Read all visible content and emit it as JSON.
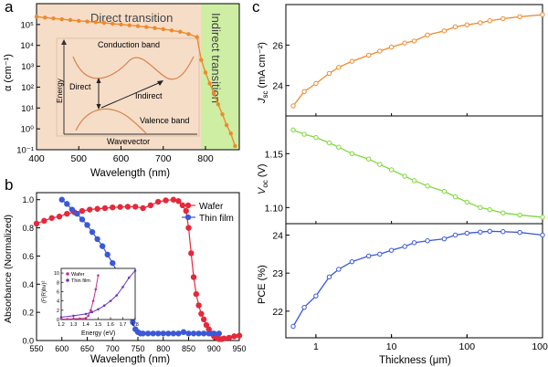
{
  "panel_labels": {
    "a": "a",
    "b": "b",
    "c": "c"
  },
  "colors": {
    "orange": "#ee8a2c",
    "green": "#7fd83a",
    "blue": "#3b58d8",
    "red": "#e6283a",
    "magenta": "#c2338e",
    "purple": "#6a35c2",
    "direct_bg": "#f6ddc8",
    "indirect_bg": "#cdeea3"
  },
  "chart_data": [
    {
      "id": "a",
      "type": "line",
      "xlabel": "Wavelength (nm)",
      "ylabel": "α (cm⁻¹)",
      "xlim": [
        400,
        880
      ],
      "ylim": [
        0.1,
        1000000
      ],
      "yscale": "log",
      "xticks": [
        "400",
        "500",
        "600",
        "700",
        "800"
      ],
      "xtick_values": [
        400,
        500,
        600,
        700,
        800
      ],
      "yticks": [
        "10⁻¹",
        "10⁰",
        "10¹",
        "10²",
        "10³",
        "10⁴",
        "10⁵"
      ],
      "ytick_values": [
        0.1,
        1,
        10,
        100,
        1000,
        10000,
        100000
      ],
      "region_labels": {
        "direct": "Direct transition",
        "indirect": "Indirect transition"
      },
      "region_boundary": 785,
      "inset": {
        "conduction": "Conduction band",
        "valence": "Valence band",
        "direct": "Direct",
        "indirect": "Indirect",
        "energy": "Energy",
        "wavevector": "Wavevector"
      },
      "series": [
        {
          "x": [
            400,
            420,
            440,
            460,
            480,
            500,
            520,
            540,
            560,
            580,
            600,
            620,
            640,
            660,
            680,
            700,
            720,
            740,
            760,
            780,
            790,
            800,
            810,
            820,
            830,
            840,
            850,
            860,
            870
          ],
          "y": [
            240000,
            215000,
            195000,
            180000,
            165000,
            150000,
            140000,
            130000,
            120000,
            110000,
            100000,
            92000,
            84000,
            76000,
            68000,
            60000,
            52000,
            45000,
            35000,
            25000,
            2000,
            500,
            150,
            50,
            15,
            5,
            1.5,
            0.6,
            0.15
          ]
        }
      ]
    },
    {
      "id": "b",
      "type": "line",
      "xlabel": "Wavelength (nm)",
      "ylabel": "Absorbance (Normalized)",
      "xlim": [
        550,
        950
      ],
      "ylim": [
        0,
        1.05
      ],
      "xticks": [
        "550",
        "600",
        "650",
        "700",
        "750",
        "800",
        "850",
        "900",
        "950"
      ],
      "xtick_values": [
        550,
        600,
        650,
        700,
        750,
        800,
        850,
        900,
        950
      ],
      "yticks": [
        "0.0",
        "0.2",
        "0.4",
        "0.6",
        "0.8",
        "1.0"
      ],
      "ytick_values": [
        0,
        0.2,
        0.4,
        0.6,
        0.8,
        1.0
      ],
      "legend": "top-right",
      "series": [
        {
          "name": "Wafer",
          "color": "red",
          "x": [
            550,
            565,
            580,
            595,
            610,
            625,
            640,
            655,
            670,
            685,
            700,
            715,
            730,
            745,
            760,
            775,
            790,
            805,
            820,
            830,
            838,
            845,
            850,
            855,
            860,
            865,
            870,
            875,
            880,
            885,
            890,
            895,
            900,
            905,
            910,
            915,
            920,
            930,
            940,
            950
          ],
          "y": [
            0.83,
            0.85,
            0.87,
            0.88,
            0.9,
            0.91,
            0.92,
            0.93,
            0.935,
            0.94,
            0.945,
            0.948,
            0.95,
            0.95,
            0.94,
            0.96,
            0.985,
            0.995,
            1.0,
            0.99,
            0.96,
            0.92,
            0.8,
            0.62,
            0.45,
            0.33,
            0.25,
            0.19,
            0.15,
            0.11,
            0.08,
            0.05,
            0.03,
            0.02,
            0.01,
            0.01,
            0.015,
            0.02,
            0.03,
            0.035
          ]
        },
        {
          "name": "Thin film",
          "color": "blue",
          "x": [
            600,
            610,
            620,
            630,
            640,
            650,
            660,
            670,
            680,
            690,
            700,
            710,
            720,
            725,
            730,
            735,
            740,
            745,
            750,
            755,
            760,
            770,
            780,
            790,
            800,
            810,
            820,
            830,
            840,
            850,
            860,
            870,
            880,
            890,
            900,
            910
          ],
          "y": [
            1.0,
            0.97,
            0.93,
            0.9,
            0.86,
            0.82,
            0.77,
            0.72,
            0.67,
            0.61,
            0.55,
            0.48,
            0.4,
            0.35,
            0.28,
            0.2,
            0.13,
            0.08,
            0.06,
            0.05,
            0.05,
            0.05,
            0.05,
            0.05,
            0.05,
            0.05,
            0.05,
            0.05,
            0.06,
            0.05,
            0.05,
            0.05,
            0.05,
            0.05,
            0.05,
            0.05
          ]
        }
      ],
      "inset": {
        "xlabel": "Energy (eV)",
        "ylabel": "(F(R)hν)²",
        "xticks": [
          "1.2",
          "1.3",
          "1.4",
          "1.5",
          "1.6",
          "1.7",
          "1.8"
        ],
        "xtick_values": [
          1.2,
          1.3,
          1.4,
          1.5,
          1.6,
          1.7,
          1.8
        ],
        "yticks": [
          "0",
          "2",
          "4",
          "6",
          "8",
          "10"
        ],
        "ytick_values": [
          0,
          2,
          4,
          6,
          8,
          10
        ],
        "legend": [
          {
            "name": "Wafer",
            "color": "magenta"
          },
          {
            "name": "Thin film",
            "color": "purple"
          }
        ],
        "series": [
          {
            "name": "Wafer",
            "color": "magenta",
            "x": [
              1.2,
              1.25,
              1.3,
              1.35,
              1.4,
              1.42,
              1.44,
              1.46,
              1.48,
              1.5
            ],
            "y": [
              0.1,
              0.1,
              0.15,
              0.2,
              0.3,
              0.8,
              2.0,
              4.0,
              6.5,
              9.5
            ]
          },
          {
            "name": "Thin film",
            "color": "purple",
            "x": [
              1.2,
              1.3,
              1.4,
              1.45,
              1.5,
              1.55,
              1.6,
              1.65,
              1.7,
              1.75,
              1.8
            ],
            "y": [
              0.5,
              0.8,
              1.2,
              1.6,
              2.2,
              3.0,
              4.0,
              5.2,
              7.0,
              9.0,
              10.5
            ]
          }
        ]
      }
    },
    {
      "id": "c",
      "type": "line",
      "xlabel": "Thickness (μm)",
      "xscale": "log",
      "xlim": [
        0.4,
        1000
      ],
      "xticks": [
        "1",
        "10",
        "100",
        "1000"
      ],
      "xtick_values": [
        1,
        10,
        100,
        1000
      ],
      "x": [
        0.5,
        0.7,
        1,
        1.5,
        2,
        3,
        5,
        7,
        10,
        15,
        20,
        30,
        50,
        70,
        100,
        150,
        200,
        300,
        500,
        1000
      ],
      "panels": [
        {
          "ylabel": "J_sc (mA cm⁻²)",
          "ylabel_main": "J",
          "ylabel_sub": "sc",
          "ylabel_rest": " (mA cm⁻²)",
          "color": "orange",
          "ylim": [
            22.5,
            28
          ],
          "yticks": [
            "24",
            "26"
          ],
          "ytick_values": [
            24,
            26
          ],
          "y": [
            23.0,
            23.7,
            24.1,
            24.6,
            24.9,
            25.2,
            25.5,
            25.7,
            25.9,
            26.1,
            26.2,
            26.5,
            26.7,
            26.9,
            27.0,
            27.1,
            27.2,
            27.3,
            27.4,
            27.5
          ]
        },
        {
          "ylabel": "V_oc (V)",
          "ylabel_main": "V",
          "ylabel_sub": "oc",
          "ylabel_rest": " (V)",
          "color": "green",
          "ylim": [
            1.085,
            1.185
          ],
          "yticks": [
            "1.10",
            "1.15"
          ],
          "ytick_values": [
            1.1,
            1.15
          ],
          "y": [
            1.172,
            1.168,
            1.165,
            1.16,
            1.156,
            1.15,
            1.145,
            1.14,
            1.135,
            1.129,
            1.125,
            1.12,
            1.115,
            1.11,
            1.105,
            1.1,
            1.098,
            1.095,
            1.093,
            1.091
          ]
        },
        {
          "ylabel": "PCE (%)",
          "ylabel_main": "PCE (%)",
          "ylabel_sub": "",
          "ylabel_rest": "",
          "color": "blue",
          "ylim": [
            21.3,
            24.3
          ],
          "yticks": [
            "22",
            "23",
            "24"
          ],
          "ytick_values": [
            22,
            23,
            24
          ],
          "y": [
            21.6,
            22.1,
            22.4,
            22.9,
            23.1,
            23.3,
            23.45,
            23.5,
            23.6,
            23.7,
            23.8,
            23.85,
            23.9,
            24.0,
            24.05,
            24.08,
            24.1,
            24.09,
            24.07,
            24.0
          ]
        }
      ]
    }
  ]
}
